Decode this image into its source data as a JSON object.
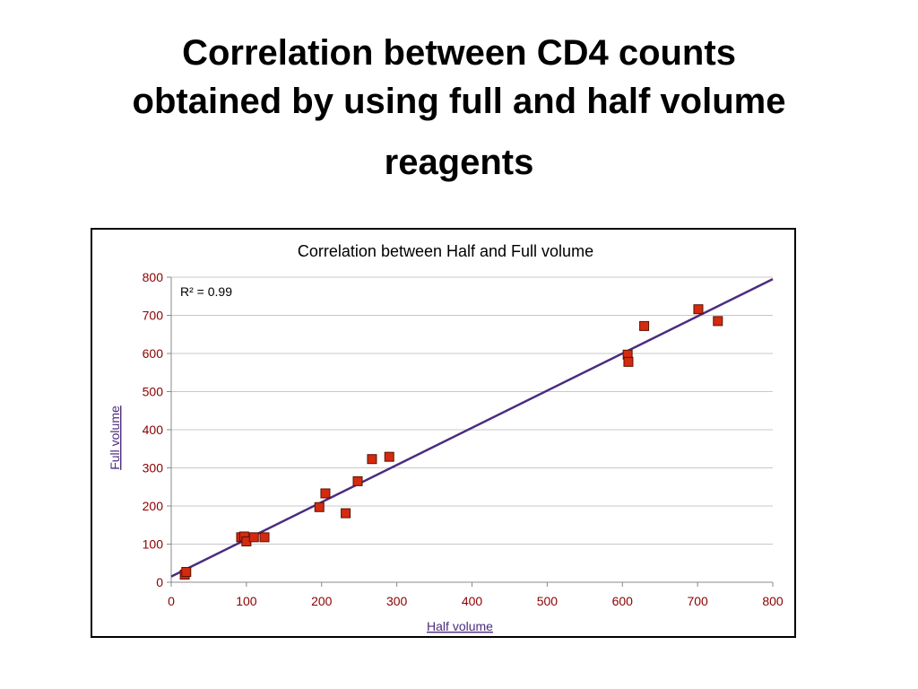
{
  "slide": {
    "title_line1": "Correlation between CD4 counts",
    "title_line2": "obtained by using full and half volume",
    "title_line3": "reagents"
  },
  "chart_data": {
    "type": "scatter",
    "title": "Correlation between Half and Full volume",
    "xlabel": "Half volume",
    "ylabel": "Full volume",
    "xlim": [
      0,
      800
    ],
    "ylim": [
      0,
      800
    ],
    "xticks": [
      "0",
      "100",
      "200",
      "300",
      "400",
      "500",
      "600",
      "700",
      "800"
    ],
    "yticks": [
      "0",
      "100",
      "200",
      "300",
      "400",
      "500",
      "600",
      "700",
      "800"
    ],
    "grid": "horizontal",
    "annotation": "R² = 0.99",
    "trendline": {
      "x": [
        0,
        800
      ],
      "y": [
        15,
        795
      ]
    },
    "points": [
      {
        "x": 18,
        "y": 20
      },
      {
        "x": 20,
        "y": 27
      },
      {
        "x": 93,
        "y": 118
      },
      {
        "x": 97,
        "y": 120
      },
      {
        "x": 100,
        "y": 107
      },
      {
        "x": 110,
        "y": 118
      },
      {
        "x": 124,
        "y": 118
      },
      {
        "x": 197,
        "y": 197
      },
      {
        "x": 205,
        "y": 233
      },
      {
        "x": 232,
        "y": 181
      },
      {
        "x": 248,
        "y": 265
      },
      {
        "x": 267,
        "y": 323
      },
      {
        "x": 290,
        "y": 329
      },
      {
        "x": 607,
        "y": 597
      },
      {
        "x": 608,
        "y": 578
      },
      {
        "x": 629,
        "y": 672
      },
      {
        "x": 701,
        "y": 716
      },
      {
        "x": 727,
        "y": 685
      }
    ],
    "colors": {
      "marker_fill": "#d42a10",
      "marker_stroke": "#5a1200",
      "trendline": "#4b2c7f",
      "tick_text": "#8b0000",
      "grid": "#c8c8c8"
    }
  }
}
